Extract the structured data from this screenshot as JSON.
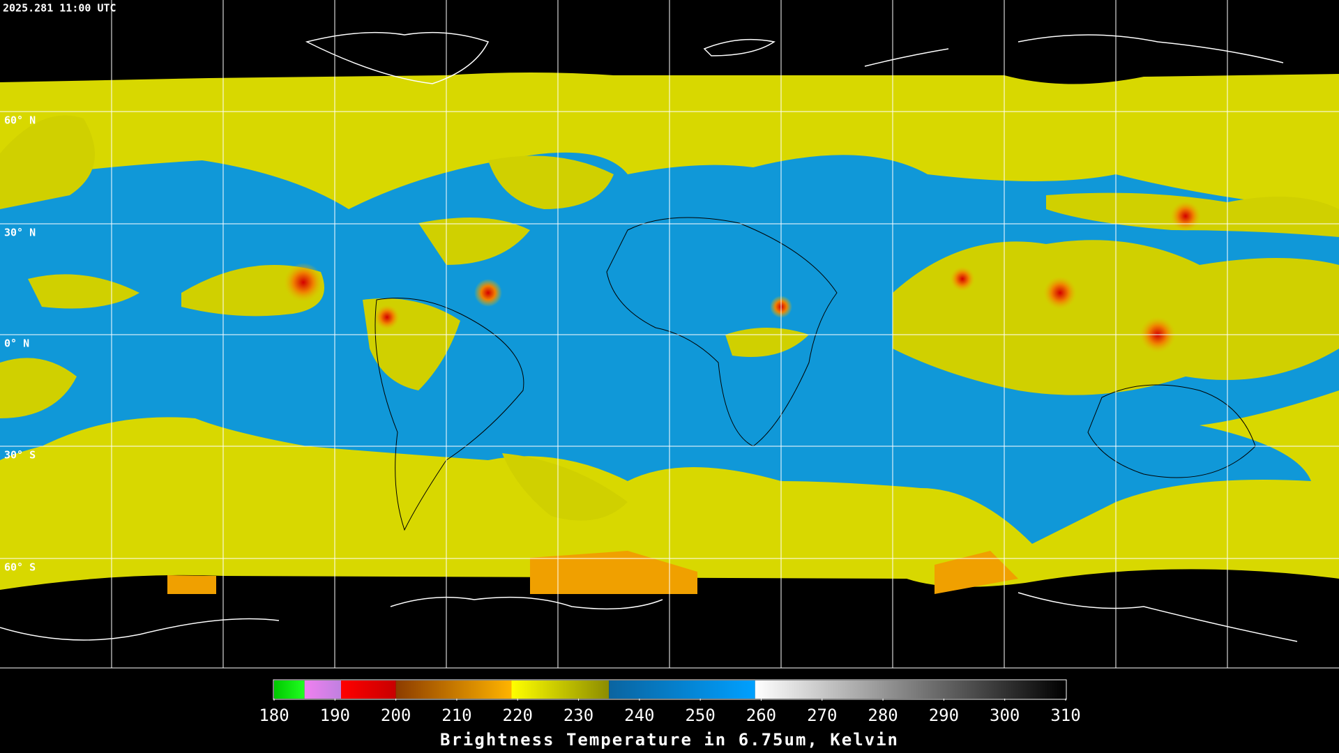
{
  "header": {
    "timestamp": "2025.281 11:00 UTC"
  },
  "map": {
    "lat_labels": [
      "60° N",
      "30° N",
      "0° N",
      "30° S",
      "60° S"
    ]
  },
  "colorbar": {
    "range": [
      180,
      310
    ],
    "ticks": [
      180,
      190,
      200,
      210,
      220,
      230,
      240,
      250,
      260,
      270,
      280,
      290,
      300,
      310
    ],
    "segments": [
      {
        "from": 180,
        "to": 185,
        "colors": [
          "#00c800",
          "#20ff20"
        ]
      },
      {
        "from": 185,
        "to": 191,
        "colors": [
          "#f080f0",
          "#c080e0"
        ]
      },
      {
        "from": 191,
        "to": 200,
        "colors": [
          "#ff0000",
          "#c80000"
        ]
      },
      {
        "from": 200,
        "to": 219,
        "colors": [
          "#8c3c00",
          "#ffb400"
        ]
      },
      {
        "from": 219,
        "to": 235,
        "colors": [
          "#ffff00",
          "#8c8c00"
        ]
      },
      {
        "from": 235,
        "to": 259,
        "colors": [
          "#0a64a0",
          "#00a0ff"
        ]
      },
      {
        "from": 259,
        "to": 310,
        "colors": [
          "#ffffff",
          "#000000"
        ]
      }
    ],
    "label": "Brightness Temperature in 6.75um, Kelvin"
  }
}
